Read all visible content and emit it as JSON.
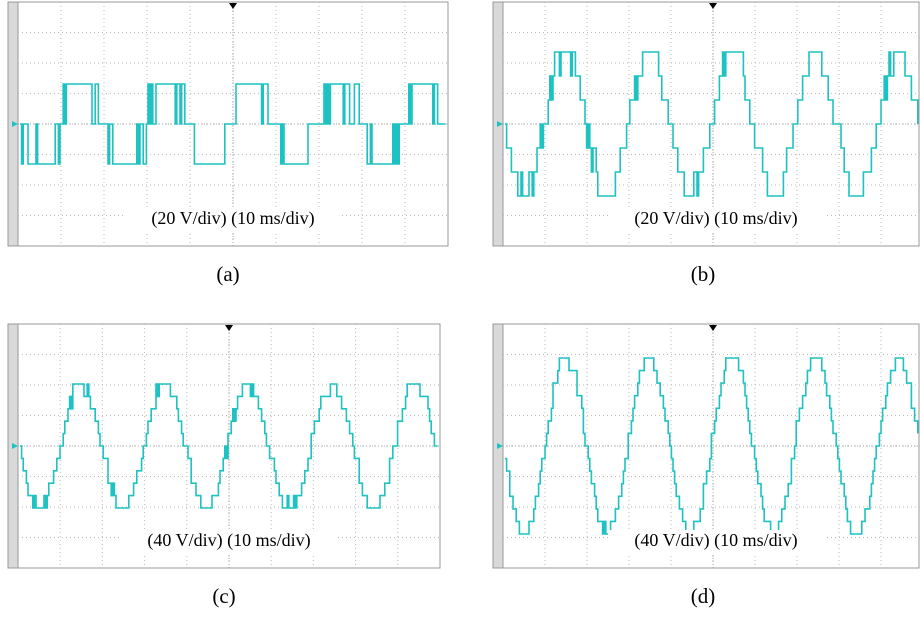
{
  "panels": [
    {
      "label": "(a)",
      "scale": "(20 V/div) (10 ms/div)"
    },
    {
      "label": "(b)",
      "scale": "(20 V/div) (10 ms/div)"
    },
    {
      "label": "(c)",
      "scale": "(40 V/div) (10 ms/div)"
    },
    {
      "label": "(d)",
      "scale": "(40 V/div) (10 ms/div)"
    }
  ]
}
